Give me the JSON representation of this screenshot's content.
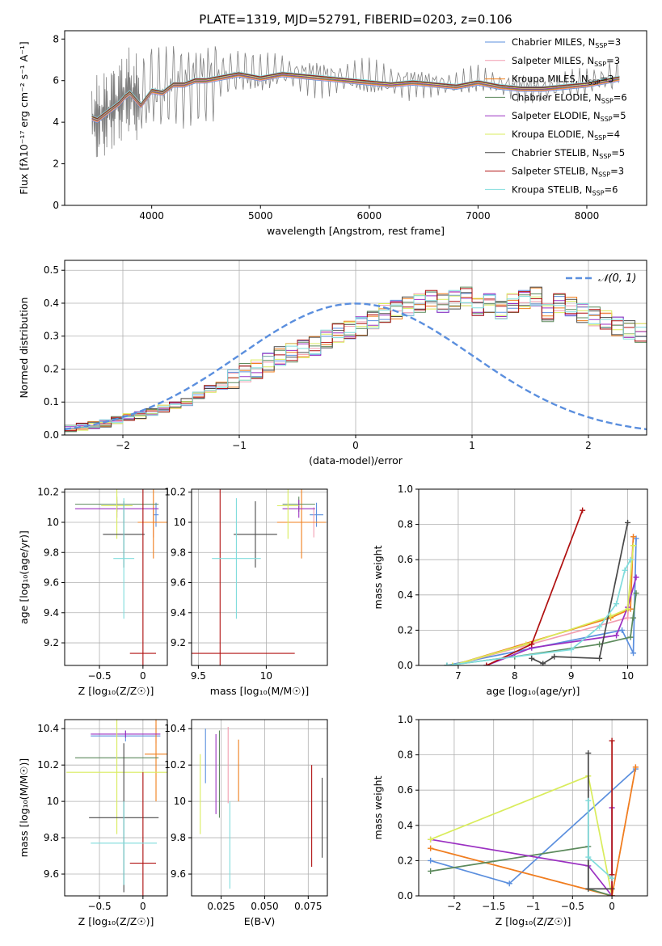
{
  "chart_data": [
    {
      "id": "spectrum",
      "type": "line",
      "title": "PLATE=1319, MJD=52791, FIBERID=0203, z=0.106",
      "xlabel": "wavelength [Angstrom, rest frame]",
      "ylabel": "Flux [fλ10⁻¹⁷ erg cm⁻² s⁻¹ A⁻¹]",
      "xlim": [
        3200,
        8550
      ],
      "ylim": [
        0,
        8.4
      ],
      "xticks": [
        4000,
        5000,
        6000,
        7000,
        8000
      ],
      "yticks": [
        0,
        2,
        4,
        6,
        8
      ],
      "grid": false,
      "legend_position": "top-right",
      "data_trace": {
        "name": "data",
        "color": "#808080",
        "x": [
          3450,
          3500,
          3550,
          3600,
          3650,
          3700,
          3750,
          3800,
          3850,
          3900,
          4000,
          4100,
          4200,
          4300,
          4400,
          4500,
          4600,
          4700,
          4800,
          4900,
          5000,
          5200,
          5400,
          5600,
          5800,
          6000,
          6200,
          6400,
          6600,
          6800,
          7000,
          7200,
          7400,
          7600,
          7800,
          8000,
          8200,
          8300
        ],
        "y": [
          4.2,
          4.1,
          4.3,
          4.5,
          4.8,
          5.0,
          5.3,
          5.5,
          5.2,
          4.9,
          5.6,
          5.5,
          5.9,
          5.8,
          6.0,
          6.1,
          6.2,
          6.3,
          6.4,
          6.3,
          6.2,
          6.4,
          6.3,
          6.2,
          6.1,
          6.0,
          5.9,
          6.0,
          5.9,
          5.8,
          6.0,
          5.8,
          5.7,
          5.6,
          5.8,
          5.9,
          6.1,
          6.2
        ]
      },
      "model_x": [
        3450,
        3500,
        3550,
        3600,
        3650,
        3700,
        3750,
        3800,
        3850,
        3900,
        4000,
        4100,
        4200,
        4300,
        4400,
        4500,
        4600,
        4700,
        4800,
        4900,
        5000,
        5200,
        5400,
        5600,
        5800,
        6000,
        6200,
        6400,
        6600,
        6800,
        7000,
        7200,
        7400,
        7600,
        7800,
        8000,
        8200,
        8300
      ],
      "model_y": [
        4.2,
        4.1,
        4.3,
        4.5,
        4.7,
        4.9,
        5.2,
        5.4,
        5.1,
        4.8,
        5.5,
        5.4,
        5.8,
        5.8,
        6.0,
        6.0,
        6.1,
        6.2,
        6.3,
        6.2,
        6.1,
        6.3,
        6.2,
        6.1,
        6.0,
        5.9,
        5.8,
        5.9,
        5.8,
        5.7,
        5.9,
        5.7,
        5.6,
        5.6,
        5.7,
        5.8,
        6.0,
        6.1
      ],
      "series": [
        {
          "name": "Chabrier MILES, N",
          "sub": "SSP",
          "suffix": "=3",
          "color": "#5b8fde"
        },
        {
          "name": "Salpeter MILES, N",
          "sub": "SSP",
          "suffix": "=3",
          "color": "#f29eb0"
        },
        {
          "name": "Kroupa MILES, N",
          "sub": "SSP",
          "suffix": "=3",
          "color": "#f07f1c"
        },
        {
          "name": "Chabrier ELODIE, N",
          "sub": "SSP",
          "suffix": "=6",
          "color": "#5c8a5c"
        },
        {
          "name": "Salpeter ELODIE, N",
          "sub": "SSP",
          "suffix": "=5",
          "color": "#9b30c2"
        },
        {
          "name": "Kroupa ELODIE, N",
          "sub": "SSP",
          "suffix": "=4",
          "color": "#d9ec5c"
        },
        {
          "name": "Chabrier STELIB, N",
          "sub": "SSP",
          "suffix": "=5",
          "color": "#484848"
        },
        {
          "name": "Salpeter STELIB, N",
          "sub": "SSP",
          "suffix": "=3",
          "color": "#b01010"
        },
        {
          "name": "Kroupa STELIB, N",
          "sub": "SSP",
          "suffix": "=6",
          "color": "#7fdcdc"
        }
      ]
    },
    {
      "id": "residuals",
      "type": "line",
      "xlabel": "(data-model)/error",
      "ylabel": "Normed distribution",
      "xlim": [
        -2.5,
        2.5
      ],
      "ylim": [
        0,
        0.53
      ],
      "xticks": [
        -2,
        -1,
        0,
        1,
        2
      ],
      "yticks": [
        0.0,
        0.1,
        0.2,
        0.3,
        0.4,
        0.5
      ],
      "grid": true,
      "legend_position": "top-right",
      "gaussian_label": "𝒩(0, 1)",
      "gaussian_color": "#5b8fde",
      "bin_width": 0.1,
      "bin_start": -2.5,
      "base_hist": [
        0.02,
        0.025,
        0.03,
        0.035,
        0.045,
        0.055,
        0.06,
        0.07,
        0.08,
        0.09,
        0.1,
        0.12,
        0.14,
        0.15,
        0.17,
        0.19,
        0.2,
        0.22,
        0.24,
        0.25,
        0.26,
        0.27,
        0.29,
        0.31,
        0.32,
        0.33,
        0.35,
        0.37,
        0.38,
        0.39,
        0.4,
        0.41,
        0.4,
        0.41,
        0.42,
        0.39,
        0.4,
        0.38,
        0.4,
        0.41,
        0.42,
        0.37,
        0.4,
        0.39,
        0.37,
        0.36,
        0.35,
        0.33,
        0.32,
        0.31,
        0.28,
        0.27,
        0.25,
        0.23,
        0.21,
        0.19,
        0.17,
        0.15,
        0.14,
        0.12,
        0.11,
        0.1,
        0.09,
        0.08,
        0.07,
        0.06,
        0.05,
        0.045,
        0.04,
        0.03,
        0.025,
        0.02,
        0.02,
        0.015,
        0.01,
        0.01,
        0.01,
        0.01,
        0.01,
        0.01
      ]
    },
    {
      "id": "age_vs_Z",
      "type": "scatter",
      "xlabel": "Z [log₁₀(Z/Z☉)]",
      "ylabel": "age  [log₁₀(age/yr)]",
      "xlim": [
        -0.9,
        0.28
      ],
      "ylim": [
        9.05,
        10.22
      ],
      "xticks": [
        -0.5,
        0.0
      ],
      "yticks": [
        9.2,
        9.4,
        9.6,
        9.8,
        10.0,
        10.2
      ],
      "grid": true,
      "points": [
        {
          "x": 0.15,
          "y": 10.05,
          "xerr": 0.03,
          "yerr": 0.08,
          "color": "#5b8fde"
        },
        {
          "x": 0.12,
          "y": 10.0,
          "xerr": 0.02,
          "yerr": 0.1,
          "color": "#f29eb0"
        },
        {
          "x": 0.12,
          "y": 10.0,
          "xerr": 0.18,
          "yerr": 0.24,
          "color": "#f07f1c"
        },
        {
          "x": -0.3,
          "y": 10.12,
          "xerr": 0.48,
          "yerr": 0.05,
          "color": "#5c8a5c"
        },
        {
          "x": -0.3,
          "y": 10.09,
          "xerr": 0.48,
          "yerr": 0.06,
          "color": "#9b30c2"
        },
        {
          "x": -0.3,
          "y": 10.11,
          "xerr": 0.18,
          "yerr": 0.22,
          "color": "#d9ec5c"
        },
        {
          "x": -0.22,
          "y": 9.92,
          "xerr": 0.24,
          "yerr": 0.22,
          "color": "#484848"
        },
        {
          "x": 0.0,
          "y": 9.13,
          "xerr": 0.15,
          "yerr": 1.15,
          "color": "#b01010"
        },
        {
          "x": -0.22,
          "y": 9.76,
          "xerr": 0.12,
          "yerr": 0.4,
          "color": "#7fdcdc"
        }
      ]
    },
    {
      "id": "age_vs_mass",
      "type": "scatter",
      "xlabel": "mass [log₁₀(M/M☉)]",
      "ylabel": "",
      "xlim": [
        9.45,
        10.45
      ],
      "ylim": [
        9.05,
        10.22
      ],
      "xticks": [
        9.5,
        10.0
      ],
      "yticks": [
        9.2,
        9.4,
        9.6,
        9.8,
        10.0,
        10.2
      ],
      "grid": true,
      "points": [
        {
          "x": 10.37,
          "y": 10.05,
          "xerr": 0.05,
          "yerr": 0.08,
          "color": "#5b8fde"
        },
        {
          "x": 10.35,
          "y": 10.0,
          "xerr": 0.05,
          "yerr": 0.1,
          "color": "#f29eb0"
        },
        {
          "x": 10.26,
          "y": 10.0,
          "xerr": 0.18,
          "yerr": 0.24,
          "color": "#f07f1c"
        },
        {
          "x": 10.24,
          "y": 10.12,
          "xerr": 0.12,
          "yerr": 0.05,
          "color": "#5c8a5c"
        },
        {
          "x": 10.24,
          "y": 10.09,
          "xerr": 0.12,
          "yerr": 0.06,
          "color": "#9b30c2"
        },
        {
          "x": 10.16,
          "y": 10.11,
          "xerr": 0.08,
          "yerr": 0.22,
          "color": "#d9ec5c"
        },
        {
          "x": 9.92,
          "y": 9.92,
          "xerr": 0.16,
          "yerr": 0.22,
          "color": "#484848"
        },
        {
          "x": 9.66,
          "y": 9.13,
          "xerr": 0.55,
          "yerr": 1.15,
          "color": "#b01010"
        },
        {
          "x": 9.78,
          "y": 9.76,
          "xerr": 0.18,
          "yerr": 0.4,
          "color": "#7fdcdc"
        }
      ]
    },
    {
      "id": "weight_vs_age",
      "type": "line",
      "xlabel": "age  [log₁₀(age/yr)]",
      "ylabel": "mass weight",
      "xlim": [
        6.3,
        10.35
      ],
      "ylim": [
        0,
        1.0
      ],
      "xticks": [
        7,
        8,
        9,
        10
      ],
      "yticks": [
        0.0,
        0.2,
        0.4,
        0.6,
        0.8,
        1.0
      ],
      "grid": true,
      "series": [
        {
          "color": "#5b8fde",
          "x": [
            6.8,
            9.9,
            10.1,
            10.15
          ],
          "y": [
            0.0,
            0.2,
            0.07,
            0.72
          ]
        },
        {
          "color": "#f29eb0",
          "x": [
            6.9,
            10.0,
            10.1
          ],
          "y": [
            0.0,
            0.27,
            0.73
          ]
        },
        {
          "color": "#f07f1c",
          "x": [
            6.9,
            9.7,
            10.05,
            10.1
          ],
          "y": [
            0.0,
            0.27,
            0.32,
            0.73
          ]
        },
        {
          "color": "#5c8a5c",
          "x": [
            6.8,
            8.0,
            9.5,
            10.05,
            10.15,
            10.1
          ],
          "y": [
            0.0,
            0.05,
            0.12,
            0.16,
            0.41,
            0.27
          ]
        },
        {
          "color": "#9b30c2",
          "x": [
            7.5,
            8.3,
            9.8,
            10.0,
            10.15
          ],
          "y": [
            0.0,
            0.1,
            0.17,
            0.33,
            0.5
          ]
        },
        {
          "color": "#d9ec5c",
          "x": [
            6.9,
            8.2,
            9.7,
            10.0,
            10.1
          ],
          "y": [
            0.0,
            0.12,
            0.28,
            0.32,
            0.68
          ]
        },
        {
          "color": "#484848",
          "x": [
            8.3,
            8.5,
            8.7,
            9.5,
            10.0
          ],
          "y": [
            0.04,
            0.01,
            0.05,
            0.04,
            0.81
          ]
        },
        {
          "color": "#b01010",
          "x": [
            7.5,
            8.3,
            9.2
          ],
          "y": [
            0.0,
            0.12,
            0.88
          ]
        },
        {
          "color": "#7fdcdc",
          "x": [
            6.8,
            9.0,
            9.5,
            9.8,
            9.95,
            10.05
          ],
          "y": [
            0.0,
            0.09,
            0.22,
            0.35,
            0.54,
            0.6
          ]
        }
      ]
    },
    {
      "id": "mass_vs_Z",
      "type": "scatter",
      "xlabel": "Z [log₁₀(Z/Z☉)]",
      "ylabel": "mass [log₁₀(M/M☉)]",
      "xlim": [
        -0.9,
        0.28
      ],
      "ylim": [
        9.48,
        10.45
      ],
      "xticks": [
        -0.5,
        0.0
      ],
      "yticks": [
        9.6,
        9.8,
        10.0,
        10.2,
        10.4
      ],
      "grid": true,
      "points": [
        {
          "x": -0.2,
          "y": 10.36,
          "xerr": 0.4,
          "yerr": 0.03,
          "color": "#5b8fde"
        },
        {
          "x": 0.15,
          "y": 10.37,
          "xerr": 0.03,
          "yerr": 0.05,
          "color": "#f29eb0"
        },
        {
          "x": 0.15,
          "y": 10.26,
          "xerr": 0.13,
          "yerr": 0.26,
          "color": "#f07f1c"
        },
        {
          "x": -0.3,
          "y": 10.24,
          "xerr": 0.48,
          "yerr": 0.0,
          "color": "#5c8a5c"
        },
        {
          "x": -0.2,
          "y": 10.37,
          "xerr": 0.4,
          "yerr": 0.02,
          "color": "#9b30c2"
        },
        {
          "x": -0.3,
          "y": 10.16,
          "xerr": 0.58,
          "yerr": 0.34,
          "color": "#d9ec5c"
        },
        {
          "x": -0.22,
          "y": 9.91,
          "xerr": 0.4,
          "yerr": 0.41,
          "color": "#484848"
        },
        {
          "x": 0.0,
          "y": 9.66,
          "xerr": 0.15,
          "yerr": 0.5,
          "color": "#b01010"
        },
        {
          "x": -0.22,
          "y": 9.77,
          "xerr": 0.38,
          "yerr": 0.23,
          "color": "#7fdcdc"
        }
      ]
    },
    {
      "id": "mass_vs_EBV",
      "type": "scatter",
      "xlabel": "E(B-V)",
      "ylabel": "",
      "xlim": [
        0.008,
        0.086
      ],
      "ylim": [
        9.48,
        10.45
      ],
      "xticks": [
        0.025,
        0.05,
        0.075
      ],
      "xticklabels": [
        "0.025",
        "0.050",
        "0.075"
      ],
      "yticks": [
        9.6,
        9.8,
        10.0,
        10.2,
        10.4
      ],
      "grid": true,
      "points": [
        {
          "x": 0.016,
          "y": 10.25,
          "yerr": 0.15,
          "color": "#5b8fde"
        },
        {
          "x": 0.029,
          "y": 10.2,
          "yerr": 0.21,
          "color": "#f29eb0"
        },
        {
          "x": 0.035,
          "y": 10.17,
          "yerr": 0.17,
          "color": "#f07f1c"
        },
        {
          "x": 0.024,
          "y": 10.15,
          "yerr": 0.24,
          "color": "#5c8a5c"
        },
        {
          "x": 0.022,
          "y": 10.15,
          "yerr": 0.22,
          "color": "#9b30c2"
        },
        {
          "x": 0.013,
          "y": 10.04,
          "yerr": 0.22,
          "color": "#d9ec5c"
        },
        {
          "x": 0.083,
          "y": 9.91,
          "yerr": 0.22,
          "color": "#484848"
        },
        {
          "x": 0.077,
          "y": 9.92,
          "yerr": 0.28,
          "color": "#b01010"
        },
        {
          "x": 0.03,
          "y": 9.76,
          "yerr": 0.24,
          "color": "#7fdcdc"
        }
      ]
    },
    {
      "id": "weight_vs_Z",
      "type": "line",
      "xlabel": "Z [log₁₀(Z/Z☉)]",
      "ylabel": "mass weight",
      "xlim": [
        -2.45,
        0.45
      ],
      "ylim": [
        0,
        1.0
      ],
      "xticks": [
        -2.0,
        -1.5,
        -1.0,
        -0.5,
        0.0
      ],
      "yticks": [
        0.0,
        0.2,
        0.4,
        0.6,
        0.8,
        1.0
      ],
      "grid": true,
      "series": [
        {
          "color": "#5b8fde",
          "x": [
            -2.3,
            -1.3,
            0.3
          ],
          "y": [
            0.2,
            0.07,
            0.72
          ]
        },
        {
          "color": "#f29eb0",
          "x": [
            -2.3,
            0.0,
            0.3
          ],
          "y": [
            0.27,
            0.0,
            0.73
          ]
        },
        {
          "color": "#f07f1c",
          "x": [
            -2.3,
            0.0,
            0.3
          ],
          "y": [
            0.27,
            0.0,
            0.73
          ]
        },
        {
          "color": "#5c8a5c",
          "x": [
            -2.3,
            -0.3,
            -0.3,
            0.0
          ],
          "y": [
            0.14,
            0.28,
            0.04,
            0.0
          ]
        },
        {
          "color": "#9b30c2",
          "x": [
            -2.3,
            -0.3,
            0.0,
            0.0
          ],
          "y": [
            0.32,
            0.17,
            0.0,
            0.5
          ]
        },
        {
          "color": "#d9ec5c",
          "x": [
            -2.3,
            -0.3,
            0.0
          ],
          "y": [
            0.32,
            0.68,
            0.0
          ]
        },
        {
          "color": "#484848",
          "x": [
            -0.3,
            -0.3,
            0.0
          ],
          "y": [
            0.81,
            0.04,
            0.04
          ]
        },
        {
          "color": "#b01010",
          "x": [
            0.0,
            0.0,
            0.0
          ],
          "y": [
            0.88,
            0.12,
            0.0
          ]
        },
        {
          "color": "#7fdcdc",
          "x": [
            -0.3,
            -0.3,
            0.0
          ],
          "y": [
            0.54,
            0.22,
            0.1
          ]
        }
      ]
    }
  ]
}
